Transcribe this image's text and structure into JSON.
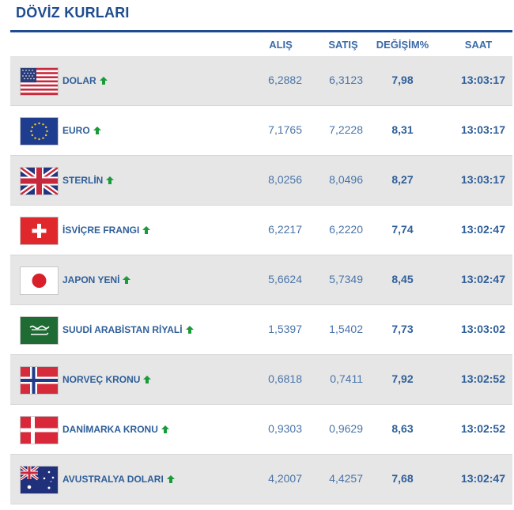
{
  "title": "DÖVİZ KURLARI",
  "columns": {
    "alis": "ALIŞ",
    "satis": "SATIŞ",
    "degisim": "DEĞİŞİM%",
    "saat": "SAAT"
  },
  "colors": {
    "title": "#1f4c8f",
    "arrow_up": "#1a9a3a",
    "row_odd": "#e6e6e6",
    "row_even": "#ffffff"
  },
  "rows": [
    {
      "flag": "us-flag-icon",
      "name": "DOLAR",
      "trend": "up-arrow-icon",
      "alis": "6,2882",
      "satis": "6,3123",
      "degisim": "7,98",
      "saat": "13:03:17"
    },
    {
      "flag": "eu-flag-icon",
      "name": "EURO",
      "trend": "up-arrow-icon",
      "alis": "7,1765",
      "satis": "7,2228",
      "degisim": "8,31",
      "saat": "13:03:17"
    },
    {
      "flag": "uk-flag-icon",
      "name": "STERLİN",
      "trend": "up-arrow-icon",
      "alis": "8,0256",
      "satis": "8,0496",
      "degisim": "8,27",
      "saat": "13:03:17"
    },
    {
      "flag": "switzerland-flag-icon",
      "name": "İSVİÇRE FRANGI",
      "trend": "up-arrow-icon",
      "alis": "6,2217",
      "satis": "6,2220",
      "degisim": "7,74",
      "saat": "13:02:47"
    },
    {
      "flag": "japan-flag-icon",
      "name": "JAPON YENİ",
      "trend": "up-arrow-icon",
      "alis": "5,6624",
      "satis": "5,7349",
      "degisim": "8,45",
      "saat": "13:02:47"
    },
    {
      "flag": "saudi-flag-icon",
      "name": "SUUDİ ARABİSTAN RİYALİ",
      "trend": "up-arrow-icon",
      "alis": "1,5397",
      "satis": "1,5402",
      "degisim": "7,73",
      "saat": "13:03:02"
    },
    {
      "flag": "norway-flag-icon",
      "name": "NORVEÇ KRONU",
      "trend": "up-arrow-icon",
      "alis": "0,6818",
      "satis": "0,7411",
      "degisim": "7,92",
      "saat": "13:02:52"
    },
    {
      "flag": "denmark-flag-icon",
      "name": "DANİMARKA KRONU",
      "trend": "up-arrow-icon",
      "alis": "0,9303",
      "satis": "0,9629",
      "degisim": "8,63",
      "saat": "13:02:52"
    },
    {
      "flag": "australia-flag-icon",
      "name": "AVUSTRALYA DOLARI",
      "trend": "up-arrow-icon",
      "alis": "4,2007",
      "satis": "4,4257",
      "degisim": "7,68",
      "saat": "13:02:47"
    }
  ]
}
